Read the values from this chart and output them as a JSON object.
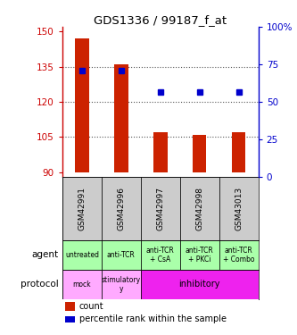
{
  "title": "GDS1336 / 99187_f_at",
  "samples": [
    "GSM42991",
    "GSM42996",
    "GSM42997",
    "GSM42998",
    "GSM43013"
  ],
  "bar_bottoms": [
    90,
    90,
    90,
    90,
    90
  ],
  "bar_tops": [
    147,
    136,
    107,
    106,
    107
  ],
  "percentile_values": [
    133.5,
    133.5,
    124,
    124,
    124
  ],
  "ylim_left": [
    88,
    152
  ],
  "ylim_right": [
    0,
    100
  ],
  "left_yticks": [
    90,
    105,
    120,
    135,
    150
  ],
  "right_yticks": [
    0,
    25,
    50,
    75,
    100
  ],
  "right_ytick_labels": [
    "0",
    "25",
    "50",
    "75",
    "100%"
  ],
  "bar_color": "#cc2200",
  "dot_color": "#0000cc",
  "agent_labels": [
    "untreated",
    "anti-TCR",
    "anti-TCR\n+ CsA",
    "anti-TCR\n+ PKCi",
    "anti-TCR\n+ Combo"
  ],
  "agent_color": "#aaffaa",
  "protocol_mock_color": "#ffaaff",
  "protocol_stimulatory_color": "#ffaaff",
  "protocol_inhibitory_color": "#ee22ee",
  "sample_bg_color": "#cccccc",
  "grid_color": "#555555",
  "left_tick_color": "#cc0000",
  "right_tick_color": "#0000cc",
  "left_spine_color": "#cc0000",
  "right_spine_color": "#0000cc"
}
